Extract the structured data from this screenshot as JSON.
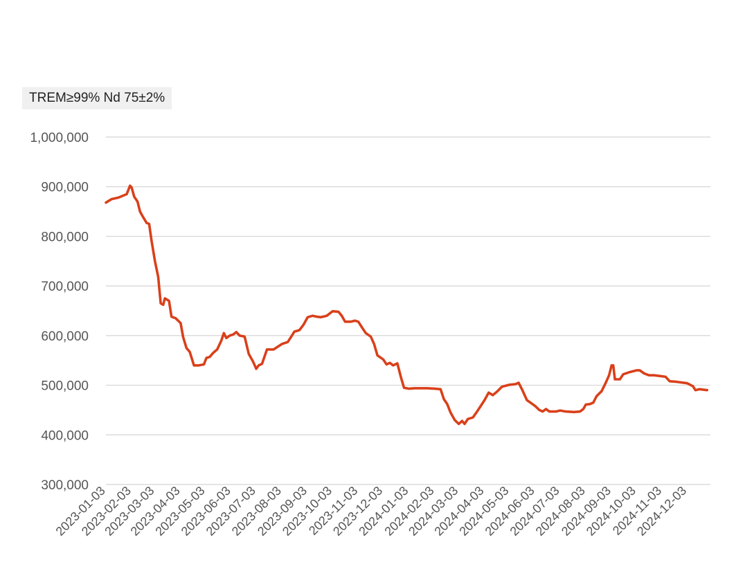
{
  "colors": {
    "series": "#d9401a",
    "grid": "#d4d4d4",
    "text": "#555555",
    "tag_bg": "#f0f0f0"
  },
  "chart_data": {
    "type": "line",
    "title": "",
    "xlabel": "",
    "ylabel": "",
    "grid": true,
    "legend": "top-left",
    "ylim": [
      300000,
      1000000
    ],
    "y_ticks": [
      "1,000,000",
      "900,000",
      "800,000",
      "700,000",
      "600,000",
      "500,000",
      "400,000",
      "300,000"
    ],
    "y_tick_values": [
      1000000,
      900000,
      800000,
      700000,
      600000,
      500000,
      400000,
      300000
    ],
    "x_ticks": [
      "2023-01-03",
      "2023-02-03",
      "2023-03-03",
      "2023-04-03",
      "2023-05-03",
      "2023-06-03",
      "2023-07-03",
      "2023-08-03",
      "2023-09-03",
      "2023-10-03",
      "2023-11-03",
      "2023-12-03",
      "2024-01-03",
      "2024-02-03",
      "2024-03-03",
      "2024-04-03",
      "2024-05-03",
      "2024-06-03",
      "2024-07-03",
      "2024-08-03",
      "2024-09-03",
      "2024-10-03",
      "2024-11-03",
      "2024-12-03"
    ],
    "series": [
      {
        "name": "TREM≥99% Nd 75±2%",
        "points": [
          [
            "2023-01-03",
            868000
          ],
          [
            "2023-01-10",
            875000
          ],
          [
            "2023-01-18",
            878000
          ],
          [
            "2023-01-28",
            885000
          ],
          [
            "2023-02-01",
            902000
          ],
          [
            "2023-02-03",
            898000
          ],
          [
            "2023-02-06",
            880000
          ],
          [
            "2023-02-10",
            870000
          ],
          [
            "2023-02-13",
            850000
          ],
          [
            "2023-02-17",
            838000
          ],
          [
            "2023-02-21",
            827000
          ],
          [
            "2023-02-24",
            825000
          ],
          [
            "2023-02-27",
            790000
          ],
          [
            "2023-03-03",
            750000
          ],
          [
            "2023-03-07",
            718000
          ],
          [
            "2023-03-10",
            665000
          ],
          [
            "2023-03-13",
            662000
          ],
          [
            "2023-03-15",
            675000
          ],
          [
            "2023-03-20",
            670000
          ],
          [
            "2023-03-23",
            638000
          ],
          [
            "2023-03-28",
            635000
          ],
          [
            "2023-04-03",
            625000
          ],
          [
            "2023-04-06",
            597000
          ],
          [
            "2023-04-10",
            575000
          ],
          [
            "2023-04-14",
            567000
          ],
          [
            "2023-04-19",
            540000
          ],
          [
            "2023-04-25",
            540000
          ],
          [
            "2023-05-01",
            542000
          ],
          [
            "2023-05-04",
            555000
          ],
          [
            "2023-05-08",
            557000
          ],
          [
            "2023-05-12",
            565000
          ],
          [
            "2023-05-17",
            572000
          ],
          [
            "2023-05-22",
            590000
          ],
          [
            "2023-05-25",
            605000
          ],
          [
            "2023-05-28",
            595000
          ],
          [
            "2023-06-01",
            600000
          ],
          [
            "2023-06-05",
            602000
          ],
          [
            "2023-06-09",
            607000
          ],
          [
            "2023-06-13",
            600000
          ],
          [
            "2023-06-19",
            598000
          ],
          [
            "2023-06-24",
            563000
          ],
          [
            "2023-06-29",
            548000
          ],
          [
            "2023-07-03",
            533000
          ],
          [
            "2023-07-06",
            540000
          ],
          [
            "2023-07-10",
            543000
          ],
          [
            "2023-07-16",
            572000
          ],
          [
            "2023-07-24",
            572000
          ],
          [
            "2023-08-03",
            583000
          ],
          [
            "2023-08-10",
            587000
          ],
          [
            "2023-08-15",
            600000
          ],
          [
            "2023-08-18",
            608000
          ],
          [
            "2023-08-24",
            611000
          ],
          [
            "2023-08-29",
            622000
          ],
          [
            "2023-09-03",
            637000
          ],
          [
            "2023-09-09",
            640000
          ],
          [
            "2023-09-14",
            638000
          ],
          [
            "2023-09-19",
            637000
          ],
          [
            "2023-09-26",
            640000
          ],
          [
            "2023-10-03",
            649000
          ],
          [
            "2023-10-10",
            648000
          ],
          [
            "2023-10-14",
            640000
          ],
          [
            "2023-10-18",
            628000
          ],
          [
            "2023-10-25",
            628000
          ],
          [
            "2023-10-30",
            630000
          ],
          [
            "2023-11-03",
            628000
          ],
          [
            "2023-11-08",
            615000
          ],
          [
            "2023-11-12",
            605000
          ],
          [
            "2023-11-18",
            598000
          ],
          [
            "2023-11-22",
            583000
          ],
          [
            "2023-11-26",
            560000
          ],
          [
            "2023-12-03",
            552000
          ],
          [
            "2023-12-07",
            542000
          ],
          [
            "2023-12-11",
            545000
          ],
          [
            "2023-12-15",
            540000
          ],
          [
            "2023-12-20",
            544000
          ],
          [
            "2023-12-24",
            518000
          ],
          [
            "2023-12-28",
            495000
          ],
          [
            "2024-01-03",
            493000
          ],
          [
            "2024-01-10",
            494000
          ],
          [
            "2024-01-25",
            494000
          ],
          [
            "2024-02-03",
            493000
          ],
          [
            "2024-02-10",
            492000
          ],
          [
            "2024-02-14",
            472000
          ],
          [
            "2024-02-18",
            462000
          ],
          [
            "2024-02-22",
            445000
          ],
          [
            "2024-02-27",
            430000
          ],
          [
            "2024-03-03",
            422000
          ],
          [
            "2024-03-07",
            428000
          ],
          [
            "2024-03-10",
            422000
          ],
          [
            "2024-03-14",
            432000
          ],
          [
            "2024-03-20",
            435000
          ],
          [
            "2024-03-25",
            447000
          ],
          [
            "2024-03-29",
            457000
          ],
          [
            "2024-04-03",
            470000
          ],
          [
            "2024-04-08",
            485000
          ],
          [
            "2024-04-13",
            480000
          ],
          [
            "2024-04-18",
            487000
          ],
          [
            "2024-04-24",
            497000
          ],
          [
            "2024-05-03",
            501000
          ],
          [
            "2024-05-10",
            502000
          ],
          [
            "2024-05-14",
            505000
          ],
          [
            "2024-05-18",
            492000
          ],
          [
            "2024-05-24",
            470000
          ],
          [
            "2024-06-03",
            458000
          ],
          [
            "2024-06-08",
            450000
          ],
          [
            "2024-06-12",
            447000
          ],
          [
            "2024-06-16",
            452000
          ],
          [
            "2024-06-20",
            447000
          ],
          [
            "2024-06-28",
            447000
          ],
          [
            "2024-07-03",
            449000
          ],
          [
            "2024-07-10",
            447000
          ],
          [
            "2024-07-20",
            446000
          ],
          [
            "2024-07-27",
            447000
          ],
          [
            "2024-07-31",
            452000
          ],
          [
            "2024-08-03",
            461000
          ],
          [
            "2024-08-08",
            462000
          ],
          [
            "2024-08-12",
            465000
          ],
          [
            "2024-08-16",
            478000
          ],
          [
            "2024-08-22",
            488000
          ],
          [
            "2024-08-27",
            505000
          ],
          [
            "2024-08-31",
            520000
          ],
          [
            "2024-09-03",
            540000
          ],
          [
            "2024-09-05",
            540000
          ],
          [
            "2024-09-07",
            512000
          ],
          [
            "2024-09-13",
            512000
          ],
          [
            "2024-09-17",
            522000
          ],
          [
            "2024-09-24",
            526000
          ],
          [
            "2024-10-03",
            530000
          ],
          [
            "2024-10-07",
            530000
          ],
          [
            "2024-10-12",
            524000
          ],
          [
            "2024-10-18",
            520000
          ],
          [
            "2024-10-24",
            520000
          ],
          [
            "2024-11-03",
            518000
          ],
          [
            "2024-11-07",
            517000
          ],
          [
            "2024-11-12",
            508000
          ],
          [
            "2024-11-20",
            507000
          ],
          [
            "2024-12-03",
            504000
          ],
          [
            "2024-12-10",
            498000
          ],
          [
            "2024-12-13",
            490000
          ],
          [
            "2024-12-18",
            492000
          ],
          [
            "2024-12-27",
            490000
          ]
        ]
      }
    ]
  }
}
